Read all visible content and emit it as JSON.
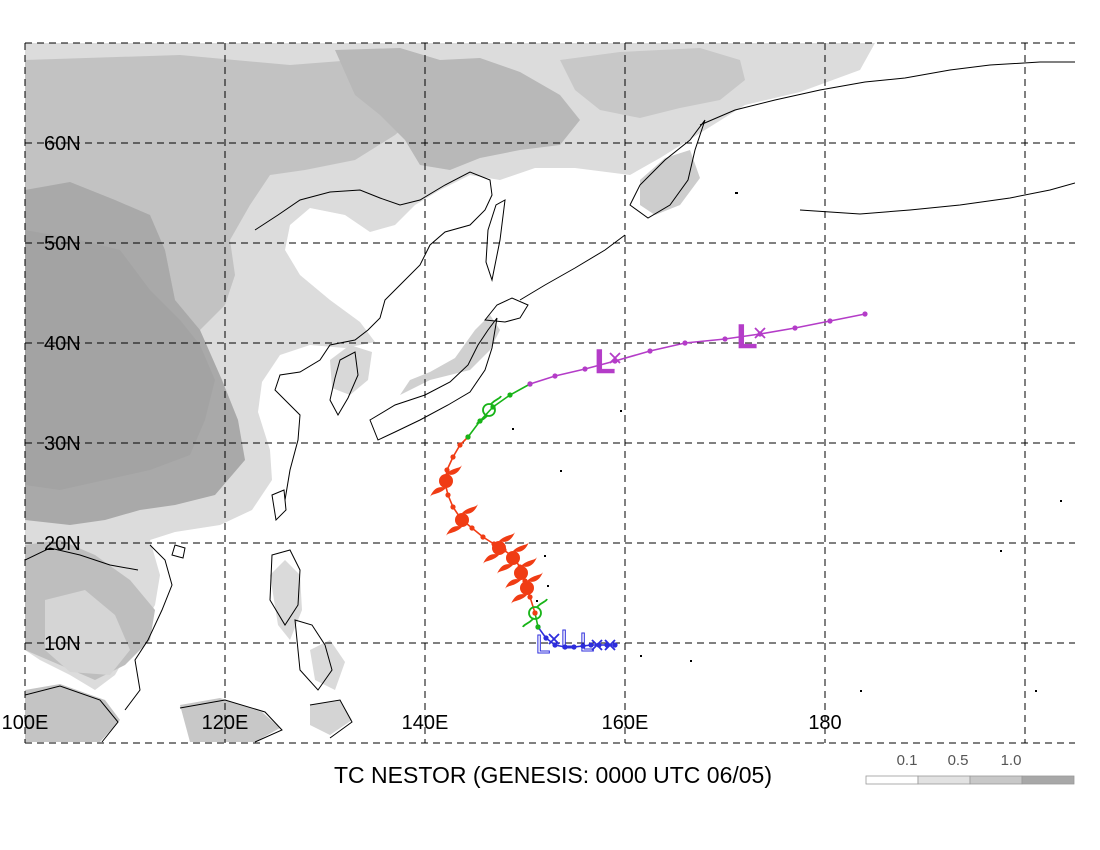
{
  "map": {
    "caption": "TC NESTOR (GENESIS: 0000 UTC 06/05)",
    "extent": {
      "lon_min": 100,
      "lon_max": 205,
      "lat_min": 0,
      "lat_max": 70
    },
    "lat_labels": [
      "60N",
      "50N",
      "40N",
      "30N",
      "20N",
      "10N"
    ],
    "lat_values": [
      60,
      50,
      40,
      30,
      20,
      10
    ],
    "lon_labels": [
      "100E",
      "120E",
      "140E",
      "160E",
      "180"
    ],
    "lon_values": [
      100,
      120,
      140,
      160,
      180
    ],
    "grid": "dashed",
    "colors": {
      "early_low": "#2d2ddc",
      "tropical_storm": "#18b418",
      "typhoon": "#f03c14",
      "extratropical": "#b43cc8",
      "land_outline": "#000000",
      "elevation_light": "#dcdcdc",
      "elevation_mid": "#c0c0c0",
      "elevation_dark": "#a5a5a5"
    }
  },
  "legend": {
    "labels": [
      "0.1",
      "0.5",
      "1.0"
    ],
    "colors": [
      "#ffffff",
      "#e2e2e2",
      "#c8c8c8",
      "#a8a8a8"
    ]
  },
  "track": {
    "segments": [
      {
        "stage": "early_low",
        "points": [
          [
            159.0,
            9.8
          ],
          [
            158.2,
            9.8
          ],
          [
            157.4,
            9.8
          ],
          [
            156.6,
            9.8
          ],
          [
            155.8,
            9.7
          ],
          [
            154.9,
            9.6
          ],
          [
            154.0,
            9.6
          ],
          [
            153.0,
            9.8
          ],
          [
            152.1,
            10.5
          ],
          [
            151.3,
            11.6
          ]
        ]
      },
      {
        "stage": "tropical_storm",
        "points": [
          [
            151.3,
            11.6
          ],
          [
            151.0,
            13.0
          ]
        ]
      },
      {
        "stage": "typhoon",
        "points": [
          [
            151.0,
            13.0
          ],
          [
            150.5,
            14.6
          ],
          [
            150.0,
            16.2
          ],
          [
            149.5,
            17.6
          ],
          [
            148.8,
            18.6
          ],
          [
            147.9,
            19.3
          ],
          [
            146.9,
            19.9
          ],
          [
            145.8,
            20.6
          ],
          [
            144.7,
            21.5
          ],
          [
            143.6,
            22.4
          ],
          [
            142.8,
            23.6
          ],
          [
            142.3,
            24.8
          ],
          [
            142.0,
            26.0
          ],
          [
            142.2,
            27.3
          ],
          [
            142.8,
            28.6
          ],
          [
            143.5,
            29.8
          ],
          [
            144.3,
            30.6
          ]
        ]
      },
      {
        "stage": "tropical_storm",
        "points": [
          [
            144.3,
            30.6
          ],
          [
            145.5,
            32.2
          ],
          [
            146.8,
            33.6
          ],
          [
            148.5,
            34.8
          ],
          [
            150.5,
            35.9
          ]
        ]
      },
      {
        "stage": "extratropical",
        "points": [
          [
            150.5,
            35.9
          ],
          [
            153.0,
            36.7
          ],
          [
            156.0,
            37.4
          ],
          [
            159.0,
            38.2
          ],
          [
            162.5,
            39.2
          ],
          [
            166.0,
            40.0
          ],
          [
            170.0,
            40.4
          ],
          [
            173.5,
            40.9
          ],
          [
            177.0,
            41.5
          ],
          [
            180.5,
            42.2
          ],
          [
            184.0,
            42.9
          ]
        ]
      }
    ],
    "storm_symbols": [
      {
        "type": "tropical_storm",
        "lon": 151.0,
        "lat": 13.0
      },
      {
        "type": "typhoon",
        "lon": 150.2,
        "lat": 15.5
      },
      {
        "type": "typhoon",
        "lon": 149.6,
        "lat": 17.0
      },
      {
        "type": "typhoon",
        "lon": 148.8,
        "lat": 18.5
      },
      {
        "type": "typhoon",
        "lon": 147.4,
        "lat": 19.5
      },
      {
        "type": "typhoon",
        "lon": 143.7,
        "lat": 22.3
      },
      {
        "type": "typhoon",
        "lon": 142.1,
        "lat": 26.2
      },
      {
        "type": "tropical_storm",
        "lon": 146.4,
        "lat": 33.3
      }
    ],
    "low_symbols": [
      {
        "stage": "early_low",
        "lon": 151.8,
        "lat": 10.0
      },
      {
        "stage": "early_low",
        "lon": 154.3,
        "lat": 10.5
      },
      {
        "stage": "early_low",
        "lon": 156.2,
        "lat": 10.2
      },
      {
        "stage": "extratropical",
        "lon": 158.0,
        "lat": 38.4
      },
      {
        "stage": "extratropical",
        "lon": 172.2,
        "lat": 40.9
      }
    ],
    "cross_symbols": [
      {
        "stage": "early_low",
        "lon": 152.9,
        "lat": 10.4
      },
      {
        "stage": "early_low",
        "lon": 157.2,
        "lat": 9.8
      },
      {
        "stage": "early_low",
        "lon": 158.5,
        "lat": 9.8
      },
      {
        "stage": "extratropical",
        "lon": 159.0,
        "lat": 38.5
      },
      {
        "stage": "extratropical",
        "lon": 173.5,
        "lat": 41.0
      }
    ]
  }
}
